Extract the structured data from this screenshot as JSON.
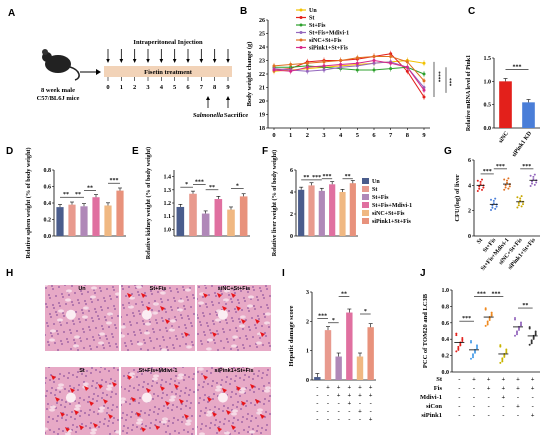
{
  "panels": [
    "A",
    "B",
    "C",
    "D",
    "E",
    "F",
    "G",
    "H",
    "I",
    "J"
  ],
  "panelA": {
    "mouse_label": [
      "8 week male",
      "C57/BL6J mice"
    ],
    "injection_label": "Intraperitoneal Injection",
    "treatment_label": "Fisetin treatment",
    "days": [
      "0",
      "1",
      "2",
      "3",
      "4",
      "5",
      "6",
      "7",
      "8",
      "9"
    ],
    "event_salmonella": "Salmonella",
    "event_sacrifice": "Sacrifice"
  },
  "colors": {
    "Un": "#f2c200",
    "St": "#e3201b",
    "StFis": "#2ca02c",
    "StFisMdivi": "#9467bd",
    "siNC": "#e07020",
    "siPink1": "#d62788",
    "barUn": "#4a5c8c",
    "barSt": "#e89a8e",
    "barStFis": "#b088b8",
    "barMdivi": "#e070a0",
    "barSiNC": "#f0b882",
    "barSiPink1": "#e8927c"
  },
  "chart_data": [
    {
      "id": "B",
      "type": "line",
      "ylabel": "Body weight change (g)",
      "x": [
        0,
        1,
        2,
        3,
        4,
        5,
        6,
        7,
        8,
        9
      ],
      "ylim": [
        18,
        26
      ],
      "yticks": [
        18,
        19,
        20,
        21,
        22,
        23,
        24,
        25,
        26
      ],
      "series": [
        {
          "name": "Un",
          "color": "#f2c200",
          "values": [
            22.2,
            22.3,
            22.4,
            22.5,
            22.6,
            22.7,
            22.8,
            22.9,
            23.0,
            22.8
          ]
        },
        {
          "name": "St",
          "color": "#e3201b",
          "values": [
            22.3,
            22.4,
            22.9,
            23.0,
            23.0,
            23.1,
            23.3,
            23.5,
            22.2,
            20.3
          ]
        },
        {
          "name": "St+Fis",
          "color": "#2ca02c",
          "values": [
            22.5,
            22.5,
            22.6,
            22.5,
            22.4,
            22.3,
            22.3,
            22.4,
            22.5,
            22.0
          ]
        },
        {
          "name": "St+Fis+Mdivi-1",
          "color": "#9467bd",
          "values": [
            22.4,
            22.3,
            22.2,
            22.3,
            22.5,
            22.6,
            22.8,
            22.9,
            22.5,
            21.0
          ]
        },
        {
          "name": "siNC+St+Fis",
          "color": "#e07020",
          "values": [
            22.6,
            22.7,
            22.8,
            22.9,
            23.0,
            23.2,
            23.3,
            23.3,
            22.9,
            21.5
          ]
        },
        {
          "name": "siPink1+St+Fis",
          "color": "#d62788",
          "values": [
            22.3,
            22.2,
            22.5,
            22.6,
            22.7,
            22.8,
            23.0,
            22.8,
            22.5,
            20.8
          ]
        }
      ],
      "significance": [
        "****",
        "***"
      ]
    },
    {
      "id": "C",
      "type": "bar",
      "ylabel": "Relative mRNA level of Pink1",
      "categories": [
        "siNC",
        "siPink1 KD"
      ],
      "values": [
        1.0,
        0.55
      ],
      "ylim": [
        0,
        1.5
      ],
      "yticks": [
        "0.0",
        "0.5",
        "1.0",
        "1.5"
      ],
      "significance": "***"
    },
    {
      "id": "D",
      "type": "bar",
      "ylabel": "Relative spleen weight (% of body weight)",
      "categories": [
        "Un",
        "St",
        "St+Fis",
        "St+Fis+Mdivi-1",
        "siNC+St+Fis",
        "siPink1+St+Fis"
      ],
      "values": [
        0.35,
        0.38,
        0.36,
        0.47,
        0.37,
        0.55
      ],
      "ylim": [
        0,
        0.8
      ],
      "yticks": [
        "0.0",
        "0.2",
        "0.4",
        "0.6",
        "0.8"
      ],
      "significance": [
        "**",
        "**",
        "**",
        "***"
      ]
    },
    {
      "id": "E",
      "type": "bar",
      "ylabel": "Relative kidney weight (% of body weight)",
      "categories": [
        "Un",
        "St",
        "St+Fis",
        "St+Fis+Mdivi-1",
        "siNC+St+Fis",
        "siPink1+St+Fis"
      ],
      "values": [
        1.17,
        1.27,
        1.12,
        1.23,
        1.15,
        1.25
      ],
      "ylim": [
        0.95,
        1.45
      ],
      "yticks": [
        "1.0",
        "1.1",
        "1.2",
        "1.3",
        "1.4"
      ],
      "significance": [
        "*",
        "***",
        "**",
        "*"
      ]
    },
    {
      "id": "F",
      "type": "bar",
      "ylabel": "Relative liver weight (% of body weight)",
      "categories": [
        "Un",
        "St",
        "St+Fis",
        "St+Fis+Mdivi-1",
        "siNC+St+Fis",
        "siPink1+St+Fis"
      ],
      "values": [
        4.2,
        4.6,
        4.1,
        4.7,
        4.0,
        4.8
      ],
      "ylim": [
        0,
        6
      ],
      "yticks": [
        "0",
        "2",
        "4",
        "6"
      ],
      "significance": [
        "**",
        "***",
        "***",
        "**"
      ],
      "legend": [
        "Un",
        "St",
        "St+Fis",
        "St+Fis+Mdivi-1",
        "siNC+St+Fis",
        "siPink1+St+Fis"
      ]
    },
    {
      "id": "G",
      "type": "scatter",
      "ylabel": "CFU(log) of liver",
      "categories": [
        "St",
        "St+Fis",
        "St+Fis+Mdivi-1",
        "siNC+St+Fis",
        "siPink1+St+Fis"
      ],
      "means": [
        4.0,
        2.5,
        4.1,
        2.7,
        4.4
      ],
      "ylim": [
        0,
        6
      ],
      "yticks": [
        "0",
        "2",
        "4",
        "6"
      ],
      "significance": [
        "***",
        "***",
        "***"
      ]
    },
    {
      "id": "I",
      "type": "bar",
      "ylabel": "Hepatic damage score",
      "categories": [
        "Un",
        "St",
        "St+Fis",
        "St+Fis+Mdivi-1",
        "siNC+St+Fis",
        "siPink1+St+Fis"
      ],
      "values": [
        0.1,
        1.7,
        0.8,
        2.3,
        0.8,
        1.8
      ],
      "ylim": [
        0,
        3
      ],
      "yticks": [
        "0",
        "1",
        "2",
        "3"
      ],
      "significance": [
        "***",
        "*",
        "**",
        "*"
      ],
      "rows": [
        {
          "label": "St",
          "marks": [
            "-",
            "+",
            "+",
            "+",
            "+",
            "+"
          ]
        },
        {
          "label": "Fis",
          "marks": [
            "-",
            "-",
            "+",
            "+",
            "+",
            "+"
          ]
        },
        {
          "label": "Mdivi-1",
          "marks": [
            "-",
            "-",
            "-",
            "+",
            "-",
            "-"
          ]
        },
        {
          "label": "siCon",
          "marks": [
            "-",
            "-",
            "-",
            "-",
            "+",
            "-"
          ]
        },
        {
          "label": "siPink1",
          "marks": [
            "-",
            "-",
            "-",
            "-",
            "-",
            "+"
          ]
        }
      ]
    },
    {
      "id": "J",
      "type": "scatter",
      "ylabel": "PCC of TOM20 and LC3B",
      "categories": [
        "Un",
        "St",
        "St+Fis",
        "St+Fis+Mdivi-1",
        "siNC+St+Fis",
        "siPink1+St+Fis"
      ],
      "means": [
        0.36,
        0.27,
        0.67,
        0.22,
        0.55,
        0.44
      ],
      "ylim": [
        0,
        1.0
      ],
      "yticks": [
        "0.0",
        "0.2",
        "0.4",
        "0.6",
        "0.8",
        "1.0"
      ],
      "significance": [
        "***",
        "***",
        "***",
        "**"
      ],
      "rows": [
        {
          "label": "St",
          "marks": [
            "-",
            "+",
            "+",
            "+",
            "+",
            "+"
          ]
        },
        {
          "label": "Fis",
          "marks": [
            "-",
            "-",
            "+",
            "+",
            "+",
            "+"
          ]
        },
        {
          "label": "Mdivi-1",
          "marks": [
            "-",
            "-",
            "-",
            "+",
            "-",
            "-"
          ]
        },
        {
          "label": "siCon",
          "marks": [
            "-",
            "-",
            "-",
            "-",
            "+",
            "-"
          ]
        },
        {
          "label": "siPink1",
          "marks": [
            "-",
            "-",
            "-",
            "-",
            "-",
            "+"
          ]
        }
      ]
    }
  ],
  "panelH": {
    "images": [
      "Un",
      "St+Fis",
      "siNC+St+Fis",
      "St",
      "St+Fis+Mdivi-1",
      "siPink1+St+Fis"
    ]
  }
}
